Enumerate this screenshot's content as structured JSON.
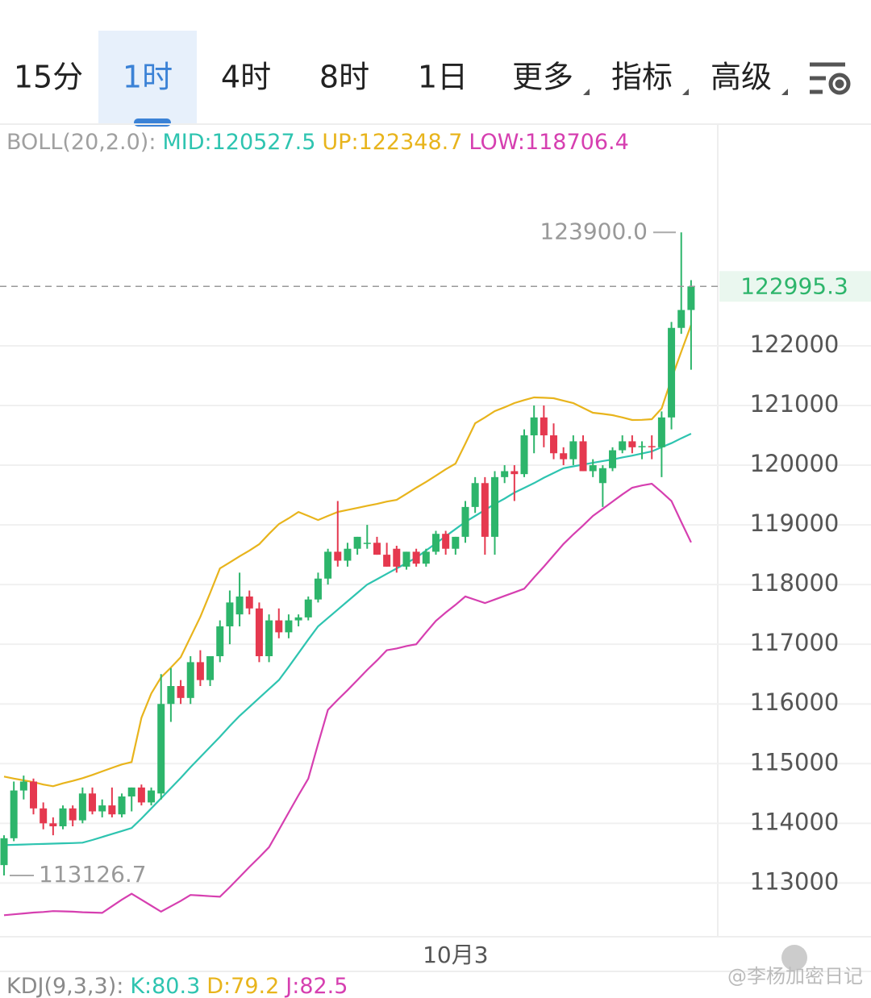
{
  "tabs": [
    "15分",
    "1时",
    "4时",
    "8时",
    "1日",
    "更多",
    "指标",
    "高级"
  ],
  "selected_tab": 1,
  "chart_data": {
    "type": "candlestick",
    "indicator_header": [
      "BOLL(20,2.0):",
      "MID:120527.5",
      "UP:122348.7",
      "LOW:118706.4"
    ],
    "categories": [
      null,
      null,
      null,
      null,
      null,
      null,
      null,
      null,
      null,
      null,
      null,
      null,
      null,
      null,
      null,
      null,
      null,
      null,
      null,
      null,
      null,
      null,
      null,
      null,
      null,
      null,
      null,
      null,
      null,
      null,
      null,
      null,
      null,
      null,
      null,
      null,
      null,
      null,
      null,
      null,
      null,
      null,
      null,
      null,
      null,
      null,
      "10月3",
      null,
      null,
      null,
      null,
      null,
      null,
      null,
      null,
      null,
      null,
      null,
      null,
      null,
      null,
      null,
      null,
      null,
      null,
      null,
      null,
      null,
      null,
      null,
      null
    ],
    "open": [
      113300,
      113750,
      114550,
      114700,
      114250,
      114000,
      113950,
      114250,
      114050,
      114500,
      114200,
      114300,
      114150,
      114450,
      114600,
      114350,
      114500,
      116000,
      116300,
      116100,
      116700,
      116400,
      116800,
      117300,
      117500,
      117800,
      117600,
      116800,
      117400,
      117200,
      117400,
      117450,
      117750,
      118100,
      118550,
      118400,
      118600,
      118700,
      118700,
      118500,
      118600,
      118300,
      118550,
      118350,
      118550,
      118850,
      118600,
      118800,
      119300,
      119700,
      118800,
      119800,
      119900,
      119850,
      120500,
      120800,
      120500,
      120200,
      120100,
      120400,
      119900,
      119700,
      119950,
      120250,
      120400,
      120300,
      120320,
      120300,
      120800,
      122300,
      122600
    ],
    "high": [
      113800,
      114700,
      114800,
      114750,
      114350,
      114100,
      114300,
      114300,
      114600,
      114600,
      114400,
      114600,
      114500,
      114600,
      114650,
      114600,
      116500,
      116600,
      116400,
      116800,
      116900,
      116800,
      117400,
      117900,
      118200,
      117900,
      117700,
      117500,
      117600,
      117500,
      117500,
      117800,
      118200,
      118600,
      119400,
      118700,
      118800,
      119000,
      118800,
      118700,
      118650,
      118550,
      118600,
      118600,
      118900,
      118900,
      118800,
      119400,
      119800,
      119800,
      119900,
      120000,
      120000,
      120600,
      121000,
      121000,
      120700,
      120300,
      120500,
      120500,
      120100,
      120000,
      120300,
      120500,
      120500,
      120400,
      120500,
      120900,
      122400,
      123900,
      123100
    ],
    "low": [
      113126.7,
      113700,
      114400,
      114150,
      113900,
      113800,
      113900,
      113950,
      114000,
      114150,
      114100,
      114100,
      114100,
      114200,
      114300,
      114300,
      114400,
      115700,
      116000,
      116000,
      116300,
      116300,
      116700,
      117000,
      117300,
      117500,
      116700,
      116700,
      117100,
      117100,
      117300,
      117400,
      117700,
      118000,
      118300,
      118300,
      118500,
      118600,
      118500,
      118300,
      118200,
      118250,
      118300,
      118300,
      118500,
      118500,
      118500,
      118700,
      119200,
      118500,
      118500,
      119700,
      119400,
      119800,
      120200,
      120300,
      120100,
      120000,
      120000,
      119900,
      119800,
      119300,
      119900,
      120200,
      120200,
      120100,
      120100,
      119800,
      120600,
      122200,
      121600
    ],
    "close": [
      113750,
      114550,
      114700,
      114250,
      114000,
      113950,
      114250,
      114050,
      114500,
      114200,
      114300,
      114150,
      114450,
      114600,
      114350,
      114550,
      116000,
      116300,
      116100,
      116700,
      116400,
      116800,
      117300,
      117700,
      117800,
      117600,
      116800,
      117400,
      117200,
      117400,
      117450,
      117750,
      118100,
      118550,
      118400,
      118600,
      118800,
      118700,
      118500,
      118300,
      118300,
      118550,
      118350,
      118550,
      118850,
      118600,
      118800,
      119300,
      119700,
      118800,
      119800,
      119900,
      119850,
      120500,
      120800,
      120500,
      120200,
      120100,
      120400,
      119900,
      120000,
      119950,
      120250,
      120400,
      120300,
      120320,
      120300,
      120800,
      122300,
      122600,
      122995.3
    ],
    "up_color": "#2db56b",
    "down_color": "#e5394f",
    "series": [
      {
        "color": "#2ec4b0",
        "values": [
          113635,
          113640,
          113645,
          113650,
          113655,
          113660,
          113665,
          113670,
          113676,
          113720,
          113770,
          113820,
          113870,
          113920,
          114080,
          114250,
          114419,
          114590,
          114760,
          114940,
          115110,
          115280,
          115450,
          115630,
          115800,
          115950,
          116100,
          116250,
          116400,
          116620,
          116850,
          117080,
          117300,
          117440,
          117580,
          117720,
          117860,
          118000,
          118090,
          118180,
          118270,
          118360,
          118450,
          118570,
          118690,
          118810,
          118930,
          119050,
          119150,
          119250,
          119350,
          119440,
          119540,
          119620,
          119700,
          119790,
          119870,
          119950,
          119980,
          120010,
          120040,
          120070,
          120095,
          120130,
          120160,
          120195,
          120230,
          120300,
          120370,
          120450,
          120527.5
        ]
      },
      {
        "color": "#e8b41c",
        "values": [
          114784,
          114750,
          114720,
          114690,
          114650,
          114622,
          114670,
          114710,
          114757,
          114810,
          114870,
          114930,
          114986,
          115027,
          115770,
          116176,
          116446,
          116610,
          116784,
          117120,
          117459,
          117860,
          118270,
          118370,
          118473,
          118570,
          118676,
          118850,
          119014,
          119110,
          119216,
          119150,
          119081,
          119150,
          119216,
          119250,
          119284,
          119320,
          119351,
          119390,
          119419,
          119520,
          119622,
          119720,
          119824,
          119930,
          120027,
          120360,
          120703,
          120800,
          120905,
          120970,
          121041,
          121090,
          121135,
          121130,
          121122,
          121080,
          121041,
          120960,
          120878,
          120860,
          120838,
          120800,
          120757,
          120760,
          120770,
          120950,
          121446,
          121900,
          122348.7
        ]
      },
      {
        "color": "#d63fb0",
        "values": [
          112460,
          112475,
          112490,
          112505,
          112515,
          112530,
          112525,
          112520,
          112510,
          112505,
          112500,
          112610,
          112720,
          112820,
          112720,
          112620,
          112520,
          112610,
          112700,
          112800,
          112790,
          112780,
          112770,
          112930,
          113100,
          113270,
          113430,
          113600,
          113890,
          114180,
          114470,
          114750,
          115330,
          115900,
          116070,
          116230,
          116400,
          116570,
          116730,
          116900,
          116930,
          116970,
          117000,
          117200,
          117392,
          117530,
          117660,
          117800,
          117745,
          117690,
          117750,
          117810,
          117870,
          117930,
          118120,
          118300,
          118490,
          118680,
          118840,
          118990,
          119150,
          119270,
          119390,
          119510,
          119622,
          119660,
          119690,
          119550,
          119400,
          119050,
          118706.4
        ]
      }
    ],
    "header_colors": [
      "#a0a0a0",
      "#2ec4b0",
      "#e8b41c",
      "#d63fb0"
    ],
    "ylim": [
      112100,
      125700
    ],
    "yticks": [
      113000,
      114000,
      115000,
      116000,
      117000,
      118000,
      119000,
      120000,
      121000,
      122000
    ],
    "grid": true,
    "last_price": 122995.3,
    "max_label": {
      "value": 123900,
      "label": "123900.0"
    },
    "min_label": 113126.7
  },
  "kdj": [
    "KDJ(9,3,3):",
    "K:80.3",
    "D:79.2",
    "J:82.5"
  ],
  "kdj_colors": [
    "#8a8a8a",
    "#2ec4b0",
    "#e8b41c",
    "#d63fb0"
  ],
  "watermark": "@李杨加密日记"
}
